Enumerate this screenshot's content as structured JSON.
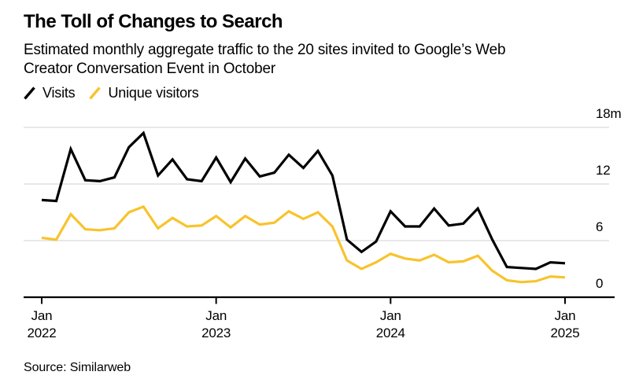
{
  "chart_data": {
    "type": "line",
    "title": "The Toll of Changes to Search",
    "subtitle_line1": "Estimated monthly aggregate traffic to the 20 sites invited to Google’s Web",
    "subtitle_line2": "Creator Conversation Event in October",
    "source": "Source: Similarweb",
    "frequency": "monthly",
    "x_start": "Jan 2022",
    "x_end": "Jan 2025",
    "x_tick_months": [
      0,
      12,
      24,
      36
    ],
    "x_tick_labels": [
      [
        "Jan",
        "2022"
      ],
      [
        "Jan",
        "2023"
      ],
      [
        "Jan",
        "2024"
      ],
      [
        "Jan",
        "2025"
      ]
    ],
    "y_ticks": [
      18,
      12,
      6,
      0
    ],
    "y_tick_labels": [
      "18m",
      "12",
      "6",
      "0"
    ],
    "ylim": [
      0,
      18
    ],
    "unit": "millions",
    "grid": "horizontal",
    "legend_position": "top-left",
    "series": [
      {
        "name": "Visits",
        "color": "#000000",
        "values": [
          10.3,
          10.2,
          15.7,
          12.4,
          12.3,
          12.7,
          15.9,
          17.4,
          12.9,
          14.6,
          12.5,
          12.3,
          14.8,
          12.2,
          14.7,
          12.8,
          13.2,
          15.1,
          13.7,
          15.5,
          12.9,
          6.1,
          4.8,
          5.9,
          9.1,
          7.5,
          7.5,
          9.4,
          7.6,
          7.8,
          9.4,
          6.1,
          3.2,
          3.1,
          3.0,
          3.7,
          3.6
        ]
      },
      {
        "name": "Unique visitors",
        "color": "#F8C32C",
        "values": [
          6.3,
          6.1,
          8.8,
          7.2,
          7.1,
          7.3,
          9.0,
          9.6,
          7.3,
          8.4,
          7.5,
          7.6,
          8.6,
          7.4,
          8.6,
          7.7,
          7.9,
          9.1,
          8.3,
          9.0,
          7.5,
          3.9,
          3.0,
          3.7,
          4.6,
          4.1,
          3.9,
          4.5,
          3.7,
          3.8,
          4.4,
          2.8,
          1.8,
          1.6,
          1.7,
          2.2,
          2.1
        ]
      }
    ]
  },
  "style": {
    "background": "#FFFFFF",
    "grid_color": "#D9D9D9",
    "axis_color": "#000000",
    "text_color": "#000000"
  }
}
